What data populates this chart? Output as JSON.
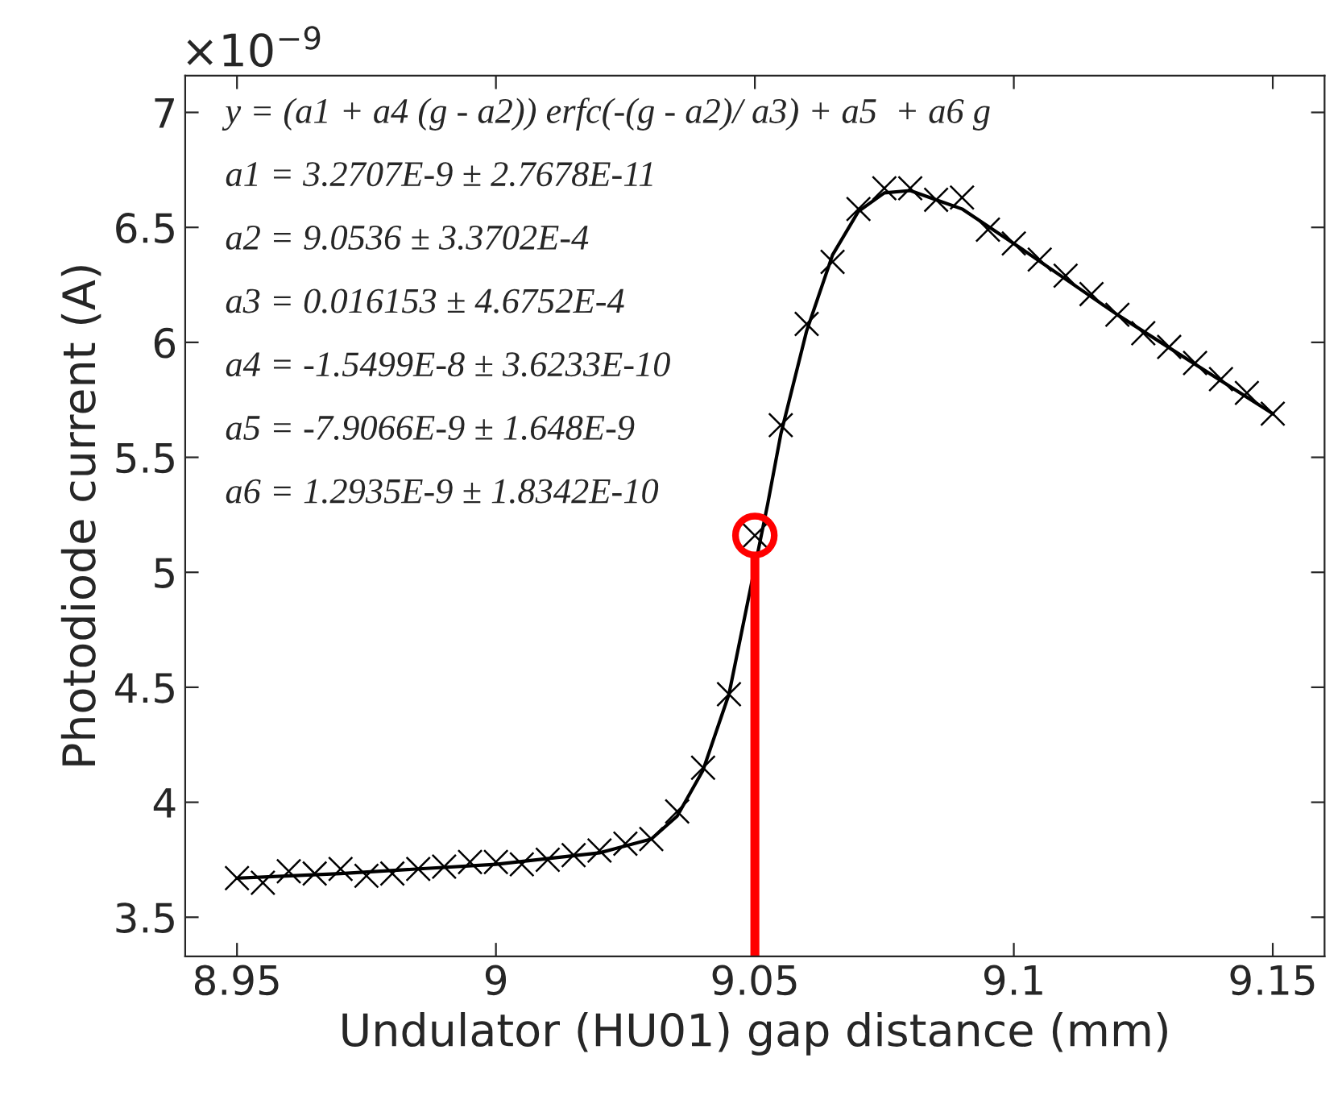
{
  "chart_data": {
    "type": "scatter",
    "xlabel": "Undulator (HU01) gap distance (mm)",
    "ylabel": "Photodiode current (A)",
    "xlim": [
      8.94,
      9.16
    ],
    "xticks": [
      8.95,
      9,
      9.05,
      9.1,
      9.15
    ],
    "ylim": [
      3.33,
      7.16
    ],
    "yticks": [
      3.5,
      4,
      4.5,
      5,
      5.5,
      6,
      6.5,
      7
    ],
    "grid": false,
    "series": [
      {
        "color": "#000000",
        "marker": "cross",
        "x": [
          8.95,
          8.955,
          8.96,
          8.965,
          8.97,
          8.975,
          8.98,
          8.985,
          8.99,
          8.995,
          9.0,
          9.005,
          9.01,
          9.015,
          9.02,
          9.025,
          9.03,
          9.035,
          9.04,
          9.045,
          9.05,
          9.055,
          9.06,
          9.065,
          9.07,
          9.075,
          9.08,
          9.085,
          9.09,
          9.095,
          9.1,
          9.105,
          9.11,
          9.115,
          9.12,
          9.125,
          9.13,
          9.135,
          9.14,
          9.145,
          9.15
        ],
        "values": [
          3.67,
          3.65,
          3.7,
          3.69,
          3.71,
          3.68,
          3.69,
          3.71,
          3.72,
          3.74,
          3.74,
          3.73,
          3.75,
          3.77,
          3.79,
          3.82,
          3.84,
          3.96,
          4.15,
          4.47,
          5.16,
          5.64,
          6.08,
          6.35,
          6.58,
          6.67,
          6.67,
          6.62,
          6.63,
          6.49,
          6.43,
          6.36,
          6.29,
          6.21,
          6.12,
          6.04,
          5.98,
          5.91,
          5.84,
          5.78,
          5.69
        ]
      },
      {
        "type": "line",
        "color": "#000000",
        "line_style": "solid",
        "x": [
          8.95,
          8.97,
          9.0,
          9.02,
          9.03,
          9.035,
          9.04,
          9.045,
          9.0525,
          9.055,
          9.06,
          9.065,
          9.07,
          9.075,
          9.08,
          9.085,
          9.09,
          9.1,
          9.12,
          9.15
        ],
        "values": [
          3.67,
          3.69,
          3.73,
          3.78,
          3.84,
          3.94,
          4.14,
          4.47,
          5.3,
          5.6,
          6.05,
          6.38,
          6.57,
          6.65,
          6.66,
          6.62,
          6.58,
          6.43,
          6.12,
          5.69
        ]
      },
      {
        "type": "line",
        "color": "#ff0000",
        "line_style": "solid",
        "x": [
          9.05,
          9.05
        ],
        "values": [
          3.33,
          5.05
        ]
      },
      {
        "type": "scatter",
        "color": "#ff0000",
        "marker": "circle",
        "x": [
          9.05
        ],
        "values": [
          5.16
        ]
      }
    ],
    "annotations": [
      "×10$^{−9}$",
      "y = (a1 + a4 (g - a2)) erfc(-(g - a2)/ a3) + a5  + a6 g",
      "a1 = 3.2707E-9 ± 2.7678E-11",
      "a2 = 9.0536 ± 3.3702E-4",
      "a3 = 0.016153 ± 4.6752E-4",
      "a4 = -1.5499E-8 ± 3.6233E-10",
      "a5 = -7.9066E-9 ± 1.648E-9",
      "a6 = 1.2935E-9 ± 1.8342E-10"
    ]
  }
}
